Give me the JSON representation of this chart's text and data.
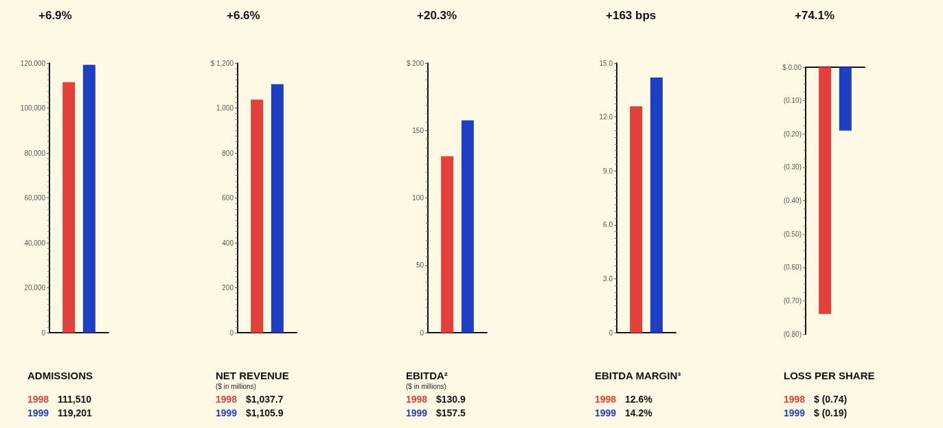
{
  "chart_data": [
    {
      "type": "bar",
      "title": "+6.9%",
      "xlabel": "ADMISSIONS",
      "annotations": [
        "111,510",
        "119,201"
      ],
      "categories": [
        null
      ],
      "series": [
        {
          "name": "1998",
          "color": "#e2413b",
          "values": [
            111510
          ]
        },
        {
          "name": "1999",
          "color": "#1f3fc2",
          "values": [
            119201
          ]
        }
      ],
      "ylim": [
        0,
        120000
      ],
      "yticks": [
        0,
        {
          "value": 20000,
          "label": "20,000"
        },
        {
          "value": 40000,
          "label": "40,000"
        },
        {
          "value": 60000,
          "label": "60,000"
        },
        {
          "value": 80000,
          "label": "80,000"
        },
        {
          "value": 100000,
          "label": "100,000"
        },
        {
          "value": 120000,
          "label": "120,000"
        }
      ]
    },
    {
      "type": "bar",
      "title": "+6.6%",
      "xlabel": "NET REVENUE",
      "annotations": [
        "($ in millions)",
        "$1,037.7",
        "$1,105.9"
      ],
      "categories": [
        null
      ],
      "series": [
        {
          "name": "1998",
          "color": "#e2413b",
          "values": [
            1037.7
          ]
        },
        {
          "name": "1999",
          "color": "#1f3fc2",
          "values": [
            1105.9
          ]
        }
      ],
      "ylim": [
        0,
        1200
      ],
      "yticks": [
        0,
        200,
        400,
        600,
        800,
        {
          "value": 1000,
          "label": "1,000"
        },
        {
          "value": 1200,
          "label": "$ 1,200"
        }
      ]
    },
    {
      "type": "bar",
      "title": "+20.3%",
      "xlabel": "EBITDA²",
      "annotations": [
        "($ in millions)",
        "$130.9",
        "$157.5"
      ],
      "categories": [
        null
      ],
      "series": [
        {
          "name": "1998",
          "color": "#e2413b",
          "values": [
            130.9
          ]
        },
        {
          "name": "1999",
          "color": "#1f3fc2",
          "values": [
            157.5
          ]
        }
      ],
      "ylim": [
        0,
        200
      ],
      "yticks": [
        0,
        50,
        100,
        150,
        {
          "value": 200,
          "label": "$ 200"
        }
      ]
    },
    {
      "type": "bar",
      "title": "+163 bps",
      "xlabel": "EBITDA MARGIN³",
      "annotations": [
        "12.6%",
        "14.2%"
      ],
      "categories": [
        null
      ],
      "series": [
        {
          "name": "1998",
          "color": "#e2413b",
          "values": [
            12.6
          ]
        },
        {
          "name": "1999",
          "color": "#1f3fc2",
          "values": [
            14.2
          ]
        }
      ],
      "ylim": [
        0,
        15
      ],
      "yticks": [
        0,
        {
          "value": 3,
          "label": "3.0"
        },
        {
          "value": 6,
          "label": "6.0"
        },
        {
          "value": 9,
          "label": "9.0"
        },
        {
          "value": 12,
          "label": "12.0"
        },
        {
          "value": 15,
          "label": "15.0"
        }
      ]
    },
    {
      "type": "bar",
      "title": "+74.1%",
      "xlabel": "LOSS PER SHARE",
      "annotations": [
        "$ (0.74)",
        "$ (0.19)"
      ],
      "categories": [
        null
      ],
      "series": [
        {
          "name": "1998",
          "color": "#e2413b",
          "values": [
            -0.74
          ]
        },
        {
          "name": "1999",
          "color": "#1f3fc2",
          "values": [
            -0.19
          ]
        }
      ],
      "ylim": [
        -0.8,
        0
      ],
      "yticks": [
        {
          "value": -0.8,
          "label": "(0.80)"
        },
        {
          "value": -0.7,
          "label": "(0.70)"
        },
        {
          "value": -0.6,
          "label": "(0.60)"
        },
        {
          "value": -0.5,
          "label": "(0.50)"
        },
        {
          "value": -0.4,
          "label": "(0.40)"
        },
        {
          "value": -0.3,
          "label": "(0.30)"
        },
        {
          "value": -0.2,
          "label": "(0.20)"
        },
        {
          "value": -0.1,
          "label": "(0.10)"
        },
        {
          "value": 0,
          "label": "$ 0.00"
        }
      ]
    }
  ]
}
